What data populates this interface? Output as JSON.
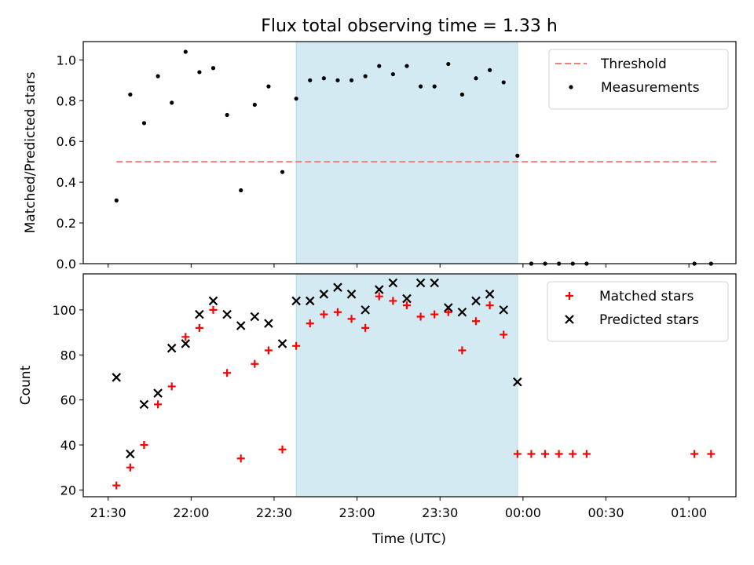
{
  "chart_data": {
    "title": "Flux total observing time = 1.33 h",
    "x_axis": {
      "label": "Time (UTC)",
      "unit": "minutes after 21:30",
      "ticks": [
        {
          "value": 0,
          "label": "21:30"
        },
        {
          "value": 30,
          "label": "22:00"
        },
        {
          "value": 60,
          "label": "22:30"
        },
        {
          "value": 90,
          "label": "23:00"
        },
        {
          "value": 120,
          "label": "23:30"
        },
        {
          "value": 150,
          "label": "00:00"
        },
        {
          "value": 180,
          "label": "00:30"
        },
        {
          "value": 210,
          "label": "01:00"
        }
      ],
      "xlim": [
        -9,
        227
      ]
    },
    "shaded_interval": {
      "start": 68,
      "end": 148,
      "color": "#d4eaf2"
    },
    "panels": [
      {
        "type": "scatter",
        "ylabel": "Matched/Predicted stars",
        "ylim": [
          0,
          1.09
        ],
        "yticks": [
          {
            "value": 0.0,
            "label": "0.0"
          },
          {
            "value": 0.2,
            "label": "0.2"
          },
          {
            "value": 0.4,
            "label": "0.4"
          },
          {
            "value": 0.6,
            "label": "0.6"
          },
          {
            "value": 0.8,
            "label": "0.8"
          },
          {
            "value": 1.0,
            "label": "1.0"
          }
        ],
        "threshold": {
          "name": "Threshold",
          "value": 0.5,
          "x_range": [
            3,
            220
          ],
          "color": "#f08080"
        },
        "series": [
          {
            "name": "Measurements",
            "marker": "dot",
            "color": "#000000",
            "x": [
              3,
              8,
              13,
              18,
              23,
              28,
              33,
              38,
              43,
              48,
              53,
              58,
              63,
              68,
              73,
              78,
              83,
              88,
              93,
              98,
              103,
              108,
              113,
              118,
              123,
              128,
              133,
              138,
              143,
              148,
              153,
              158,
              163,
              168,
              173,
              212,
              218
            ],
            "y": [
              0.31,
              0.83,
              0.69,
              0.92,
              0.79,
              1.04,
              0.94,
              0.96,
              0.73,
              0.36,
              0.78,
              0.87,
              0.45,
              0.81,
              0.9,
              0.91,
              0.9,
              0.9,
              0.92,
              0.97,
              0.93,
              0.97,
              0.87,
              0.87,
              0.98,
              0.83,
              0.91,
              0.95,
              0.89,
              0.53,
              0.0,
              0.0,
              0.0,
              0.0,
              0.0,
              0.0,
              0.0
            ]
          }
        ],
        "legend": {
          "position": "top-right",
          "items": [
            "Threshold",
            "Measurements"
          ]
        }
      },
      {
        "type": "scatter",
        "ylabel": "Count",
        "ylim": [
          17,
          116
        ],
        "yticks": [
          {
            "value": 20,
            "label": "20"
          },
          {
            "value": 40,
            "label": "40"
          },
          {
            "value": 60,
            "label": "60"
          },
          {
            "value": 80,
            "label": "80"
          },
          {
            "value": 100,
            "label": "100"
          }
        ],
        "series": [
          {
            "name": "Matched stars",
            "marker": "plus",
            "color": "#ff0000",
            "x": [
              3,
              8,
              13,
              18,
              23,
              28,
              33,
              38,
              43,
              48,
              53,
              58,
              63,
              68,
              73,
              78,
              83,
              88,
              93,
              98,
              103,
              108,
              113,
              118,
              123,
              128,
              133,
              138,
              143,
              148,
              153,
              158,
              163,
              168,
              173,
              212,
              218
            ],
            "y": [
              22,
              30,
              40,
              58,
              66,
              88,
              92,
              100,
              72,
              34,
              76,
              82,
              38,
              84,
              94,
              98,
              99,
              96,
              92,
              106,
              104,
              102,
              97,
              98,
              99,
              82,
              95,
              102,
              89,
              36,
              36,
              36,
              36,
              36,
              36,
              36,
              36
            ]
          },
          {
            "name": "Predicted stars",
            "marker": "x",
            "color": "#000000",
            "x": [
              3,
              8,
              13,
              18,
              23,
              28,
              33,
              38,
              43,
              48,
              53,
              58,
              63,
              68,
              73,
              78,
              83,
              88,
              93,
              98,
              103,
              108,
              113,
              118,
              123,
              128,
              133,
              138,
              143,
              148
            ],
            "y": [
              70,
              36,
              58,
              63,
              83,
              85,
              98,
              104,
              98,
              93,
              97,
              94,
              85,
              104,
              104,
              107,
              110,
              107,
              100,
              109,
              112,
              105,
              112,
              112,
              101,
              99,
              104,
              107,
              100,
              68
            ]
          }
        ],
        "legend": {
          "position": "top-right",
          "items": [
            "Matched stars",
            "Predicted stars"
          ]
        }
      }
    ]
  }
}
